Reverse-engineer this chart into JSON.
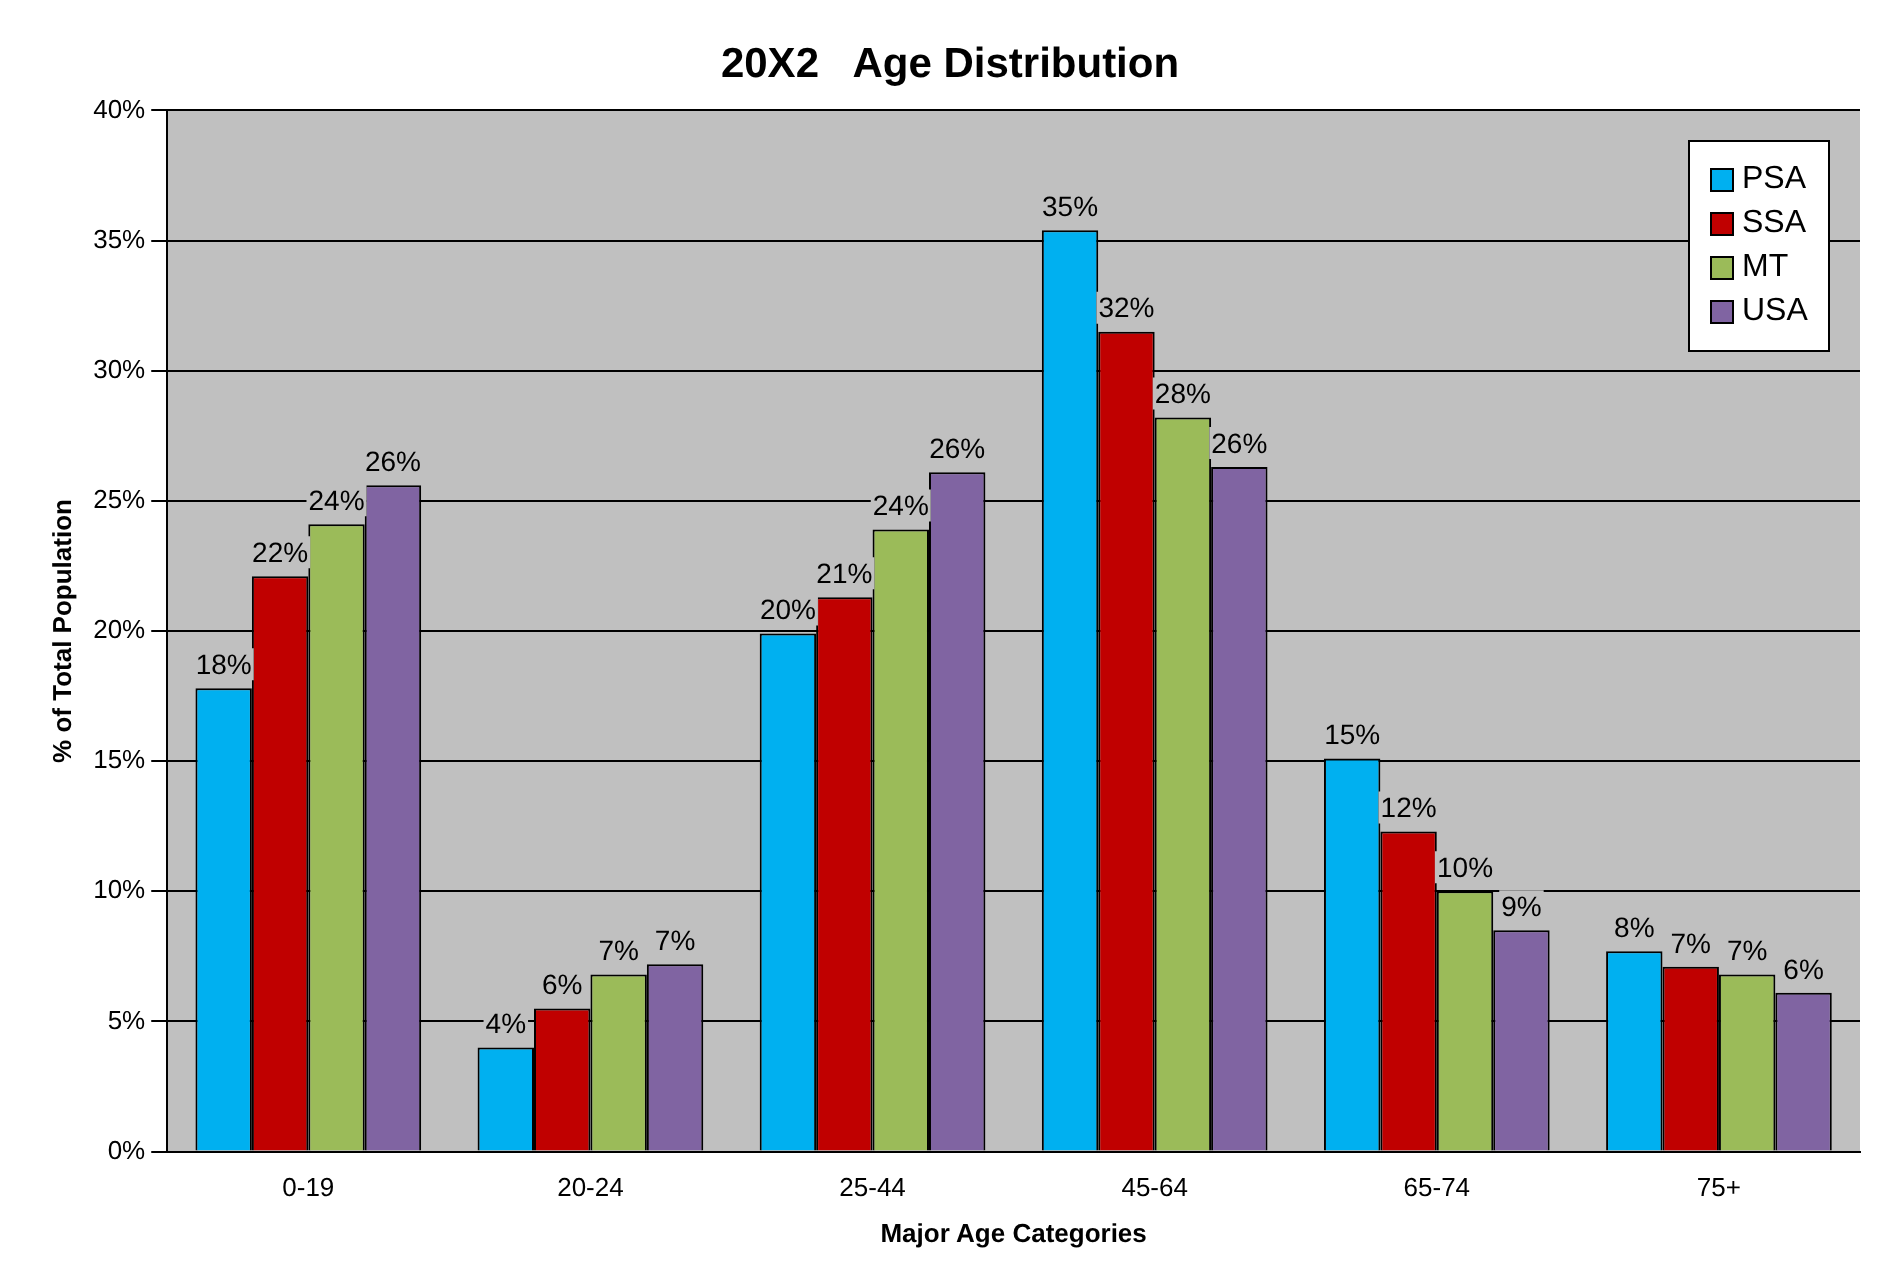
{
  "chart_data": {
    "type": "bar",
    "title": "20X2   Age Distribution",
    "xlabel": "Major Age Categories",
    "ylabel": "% of Total Population",
    "categories": [
      "0-19",
      "20-24",
      "25-44",
      "45-64",
      "65-74",
      "75+"
    ],
    "series": [
      {
        "name": "PSA",
        "color": "#00b0f0",
        "values": [
          17.8,
          4.0,
          19.9,
          35.4,
          15.1,
          7.7
        ],
        "value_labels": [
          "18%",
          "4%",
          "20%",
          "35%",
          "15%",
          "8%"
        ]
      },
      {
        "name": "SSA",
        "color": "#c00000",
        "values": [
          22.1,
          5.5,
          21.3,
          31.5,
          12.3,
          7.1
        ],
        "value_labels": [
          "22%",
          "6%",
          "21%",
          "32%",
          "12%",
          "7%"
        ]
      },
      {
        "name": "MT",
        "color": "#9bbb59",
        "values": [
          24.1,
          6.8,
          23.9,
          28.2,
          10.0,
          6.8
        ],
        "value_labels": [
          "24%",
          "7%",
          "24%",
          "28%",
          "10%",
          "7%"
        ]
      },
      {
        "name": "USA",
        "color": "#8064a2",
        "values": [
          25.6,
          7.2,
          26.1,
          26.3,
          8.5,
          6.1
        ],
        "value_labels": [
          "26%",
          "7%",
          "26%",
          "26%",
          "9%",
          "6%"
        ]
      }
    ],
    "ylim": [
      0,
      40
    ],
    "yticks": [
      {
        "value": 0,
        "label": "0%"
      },
      {
        "value": 5,
        "label": "5%"
      },
      {
        "value": 10,
        "label": "10%"
      },
      {
        "value": 15,
        "label": "15%"
      },
      {
        "value": 20,
        "label": "20%"
      },
      {
        "value": 25,
        "label": "25%"
      },
      {
        "value": 30,
        "label": "30%"
      },
      {
        "value": 35,
        "label": "35%"
      },
      {
        "value": 40,
        "label": "40%"
      }
    ],
    "grid": "y",
    "legend": "top right"
  }
}
